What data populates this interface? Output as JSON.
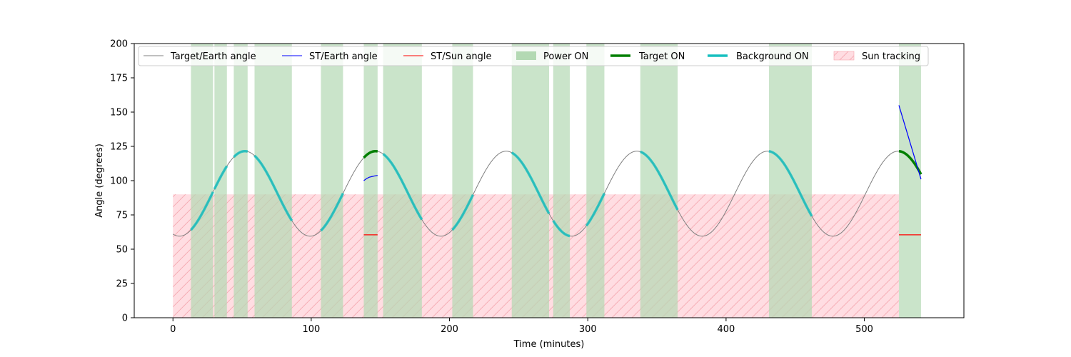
{
  "chart_data": {
    "type": "line",
    "xlabel": "Time (minutes)",
    "ylabel": "Angle (degrees)",
    "xlim": [
      -28,
      572
    ],
    "ylim": [
      0,
      200
    ],
    "xticks": [
      0,
      100,
      200,
      300,
      400,
      500
    ],
    "yticks": [
      0,
      25,
      50,
      75,
      100,
      125,
      150,
      175,
      200
    ],
    "grid": false,
    "legend_position": "top",
    "sun_tracking_band": {
      "x": [
        0,
        525
      ],
      "y": [
        0,
        90
      ]
    },
    "power_on_intervals": [
      [
        13,
        29
      ],
      [
        30,
        39
      ],
      [
        44,
        54
      ],
      [
        59,
        86
      ],
      [
        107,
        123
      ],
      [
        138,
        148
      ],
      [
        152,
        180
      ],
      [
        202,
        217
      ],
      [
        245,
        272
      ],
      [
        275,
        287
      ],
      [
        299,
        312
      ],
      [
        338,
        365
      ],
      [
        431,
        462
      ],
      [
        525,
        541
      ]
    ],
    "target_earth_model": {
      "mean": 90.5,
      "amplitude": 31,
      "period_min": 94.5,
      "peak_time_min": 52,
      "t_range": [
        0,
        541
      ]
    },
    "st_earth_segments": [
      {
        "x": [
          138,
          140,
          142,
          144,
          146,
          148
        ],
        "y": [
          100,
          101.5,
          102.5,
          103,
          103.5,
          103.8
        ]
      },
      {
        "x": [
          525,
          541
        ],
        "y": [
          155,
          101
        ]
      }
    ],
    "st_sun_segments": [
      {
        "x": [
          138,
          148
        ],
        "y": [
          60.5,
          60.5
        ]
      },
      {
        "x": [
          525,
          541
        ],
        "y": [
          60.5,
          60.5
        ]
      }
    ],
    "target_on_intervals": [
      [
        138,
        148
      ],
      [
        525,
        541
      ]
    ],
    "background_on_intervals": [
      [
        13,
        29
      ],
      [
        30,
        39
      ],
      [
        44,
        54
      ],
      [
        59,
        86
      ],
      [
        107,
        123
      ],
      [
        152,
        180
      ],
      [
        202,
        217
      ],
      [
        245,
        272
      ],
      [
        275,
        287
      ],
      [
        299,
        312
      ],
      [
        338,
        365
      ],
      [
        431,
        462
      ]
    ],
    "series": [
      {
        "name": "Target/Earth angle",
        "color": "#808080"
      },
      {
        "name": "ST/Earth angle",
        "color": "#0000ff"
      },
      {
        "name": "ST/Sun angle",
        "color": "#ff0000"
      },
      {
        "name": "Power ON",
        "color": "#b3d9b3"
      },
      {
        "name": "Target ON",
        "color": "#007f00"
      },
      {
        "name": "Background ON",
        "color": "#17bfbf"
      },
      {
        "name": "Sun tracking",
        "color": "#ffdde2"
      }
    ]
  }
}
